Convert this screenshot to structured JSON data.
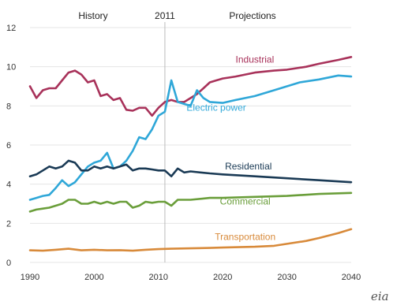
{
  "chart_data": {
    "type": "line",
    "title": "",
    "xlabel": "",
    "ylabel": "",
    "xlim": [
      1990,
      2040
    ],
    "ylim": [
      0,
      12
    ],
    "x_ticks": [
      1990,
      2000,
      2010,
      2020,
      2030,
      2040
    ],
    "y_ticks": [
      0,
      2,
      4,
      6,
      8,
      10,
      12
    ],
    "grid": true,
    "divider_year": 2011,
    "headers": {
      "history": "History",
      "divider": "2011",
      "projections": "Projections"
    },
    "logo_text": "eia",
    "colors": {
      "Industrial": "#a8325a",
      "Electric power": "#2fa7d8",
      "Residential": "#1a3a55",
      "Commercial": "#6a9e3a",
      "Transportation": "#d88a3a"
    },
    "series": [
      {
        "name": "Industrial",
        "x": [
          1990,
          1991,
          1992,
          1993,
          1994,
          1995,
          1996,
          1997,
          1998,
          1999,
          2000,
          2001,
          2002,
          2003,
          2004,
          2005,
          2006,
          2007,
          2008,
          2009,
          2010,
          2011,
          2012,
          2013,
          2014,
          2015,
          2016,
          2017,
          2018,
          2019,
          2020,
          2022,
          2025,
          2028,
          2030,
          2033,
          2035,
          2038,
          2040
        ],
        "y": [
          9.0,
          8.4,
          8.8,
          8.9,
          8.9,
          9.3,
          9.7,
          9.8,
          9.6,
          9.2,
          9.3,
          8.5,
          8.6,
          8.3,
          8.4,
          7.8,
          7.75,
          7.9,
          7.9,
          7.5,
          7.9,
          8.2,
          8.3,
          8.2,
          8.2,
          8.4,
          8.6,
          8.9,
          9.2,
          9.3,
          9.4,
          9.5,
          9.7,
          9.8,
          9.85,
          10.0,
          10.15,
          10.35,
          10.5
        ]
      },
      {
        "name": "Electric power",
        "x": [
          1990,
          1991,
          1992,
          1993,
          1994,
          1995,
          1996,
          1997,
          1998,
          1999,
          2000,
          2001,
          2002,
          2003,
          2004,
          2005,
          2006,
          2007,
          2008,
          2009,
          2010,
          2011,
          2012,
          2013,
          2014,
          2015,
          2016,
          2017,
          2018,
          2020,
          2022,
          2025,
          2028,
          2030,
          2032,
          2035,
          2038,
          2040
        ],
        "y": [
          3.2,
          3.3,
          3.4,
          3.45,
          3.8,
          4.2,
          3.9,
          4.1,
          4.5,
          4.9,
          5.1,
          5.2,
          5.6,
          4.8,
          4.9,
          5.2,
          5.7,
          6.4,
          6.3,
          6.8,
          7.5,
          7.7,
          9.3,
          8.2,
          8.1,
          8.0,
          8.8,
          8.4,
          8.2,
          8.15,
          8.3,
          8.5,
          8.8,
          9.0,
          9.2,
          9.35,
          9.55,
          9.5
        ]
      },
      {
        "name": "Residential",
        "x": [
          1990,
          1991,
          1992,
          1993,
          1994,
          1995,
          1996,
          1997,
          1998,
          1999,
          2000,
          2001,
          2002,
          2003,
          2004,
          2005,
          2006,
          2007,
          2008,
          2009,
          2010,
          2011,
          2012,
          2013,
          2014,
          2015,
          2018,
          2020,
          2025,
          2030,
          2035,
          2040
        ],
        "y": [
          4.4,
          4.5,
          4.7,
          4.9,
          4.8,
          4.9,
          5.2,
          5.1,
          4.7,
          4.7,
          4.9,
          4.8,
          4.9,
          4.8,
          4.9,
          5.0,
          4.7,
          4.8,
          4.8,
          4.75,
          4.7,
          4.7,
          4.4,
          4.8,
          4.6,
          4.65,
          4.55,
          4.5,
          4.4,
          4.3,
          4.2,
          4.1
        ]
      },
      {
        "name": "Commercial",
        "x": [
          1990,
          1991,
          1992,
          1993,
          1994,
          1995,
          1996,
          1997,
          1998,
          1999,
          2000,
          2001,
          2002,
          2003,
          2004,
          2005,
          2006,
          2007,
          2008,
          2009,
          2010,
          2011,
          2012,
          2013,
          2014,
          2015,
          2018,
          2020,
          2025,
          2030,
          2035,
          2040
        ],
        "y": [
          2.6,
          2.7,
          2.75,
          2.8,
          2.9,
          3.0,
          3.2,
          3.2,
          3.0,
          3.0,
          3.1,
          3.0,
          3.1,
          3.0,
          3.1,
          3.1,
          2.8,
          2.9,
          3.1,
          3.05,
          3.1,
          3.1,
          2.9,
          3.2,
          3.2,
          3.2,
          3.3,
          3.3,
          3.35,
          3.4,
          3.5,
          3.55
        ]
      },
      {
        "name": "Transportation",
        "x": [
          1990,
          1992,
          1994,
          1996,
          1998,
          2000,
          2002,
          2004,
          2006,
          2008,
          2010,
          2012,
          2015,
          2018,
          2020,
          2025,
          2028,
          2030,
          2033,
          2035,
          2038,
          2040
        ],
        "y": [
          0.62,
          0.6,
          0.65,
          0.7,
          0.62,
          0.65,
          0.62,
          0.63,
          0.6,
          0.65,
          0.68,
          0.7,
          0.72,
          0.74,
          0.76,
          0.8,
          0.85,
          0.95,
          1.1,
          1.25,
          1.5,
          1.7
        ]
      }
    ],
    "annotations": [
      {
        "text": "Industrial",
        "series": "Industrial",
        "x": 2025,
        "y": 10.2
      },
      {
        "text": "Electric power",
        "series": "Electric power",
        "x": 2019,
        "y": 7.75
      },
      {
        "text": "Residential",
        "series": "Residential",
        "x": 2024,
        "y": 4.75
      },
      {
        "text": "Commercial",
        "series": "Commercial",
        "x": 2023.5,
        "y": 2.95
      },
      {
        "text": "Transportation",
        "series": "Transportation",
        "x": 2023.5,
        "y": 1.15
      }
    ]
  }
}
